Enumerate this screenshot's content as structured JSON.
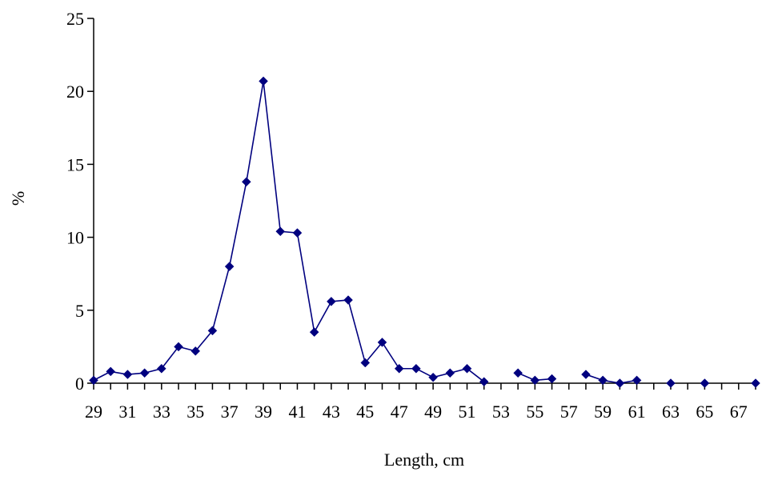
{
  "chart_data": {
    "type": "line",
    "title": "",
    "xlabel": "Length, cm",
    "ylabel": "%",
    "xlim": [
      29,
      68
    ],
    "ylim": [
      0,
      25
    ],
    "yticks": [
      0,
      5,
      10,
      15,
      20,
      25
    ],
    "xtick_labels": [
      29,
      31,
      33,
      35,
      37,
      39,
      41,
      43,
      45,
      47,
      49,
      51,
      53,
      55,
      57,
      59,
      61,
      63,
      65,
      67
    ],
    "grid": false,
    "legend": "none",
    "marker": "diamond",
    "color": "#00007f",
    "segments": [
      [
        {
          "x": 29,
          "y": 0.2
        },
        {
          "x": 30,
          "y": 0.8
        },
        {
          "x": 31,
          "y": 0.6
        },
        {
          "x": 32,
          "y": 0.7
        },
        {
          "x": 33,
          "y": 1.0
        },
        {
          "x": 34,
          "y": 2.5
        },
        {
          "x": 35,
          "y": 2.2
        },
        {
          "x": 36,
          "y": 3.6
        },
        {
          "x": 37,
          "y": 8.0
        },
        {
          "x": 38,
          "y": 13.8
        },
        {
          "x": 39,
          "y": 20.7
        },
        {
          "x": 40,
          "y": 10.4
        },
        {
          "x": 41,
          "y": 10.3
        },
        {
          "x": 42,
          "y": 3.5
        },
        {
          "x": 43,
          "y": 5.6
        },
        {
          "x": 44,
          "y": 5.7
        },
        {
          "x": 45,
          "y": 1.4
        },
        {
          "x": 46,
          "y": 2.8
        },
        {
          "x": 47,
          "y": 1.0
        },
        {
          "x": 48,
          "y": 1.0
        },
        {
          "x": 49,
          "y": 0.4
        },
        {
          "x": 50,
          "y": 0.7
        },
        {
          "x": 51,
          "y": 1.0
        },
        {
          "x": 52,
          "y": 0.1
        }
      ],
      [
        {
          "x": 54,
          "y": 0.7
        },
        {
          "x": 55,
          "y": 0.2
        },
        {
          "x": 56,
          "y": 0.3
        }
      ],
      [
        {
          "x": 58,
          "y": 0.6
        },
        {
          "x": 59,
          "y": 0.2
        },
        {
          "x": 60,
          "y": 0.0
        },
        {
          "x": 61,
          "y": 0.2
        }
      ],
      [
        {
          "x": 63,
          "y": 0.0
        }
      ],
      [
        {
          "x": 65,
          "y": 0.0
        }
      ],
      [
        {
          "x": 68,
          "y": 0.0
        }
      ]
    ]
  }
}
